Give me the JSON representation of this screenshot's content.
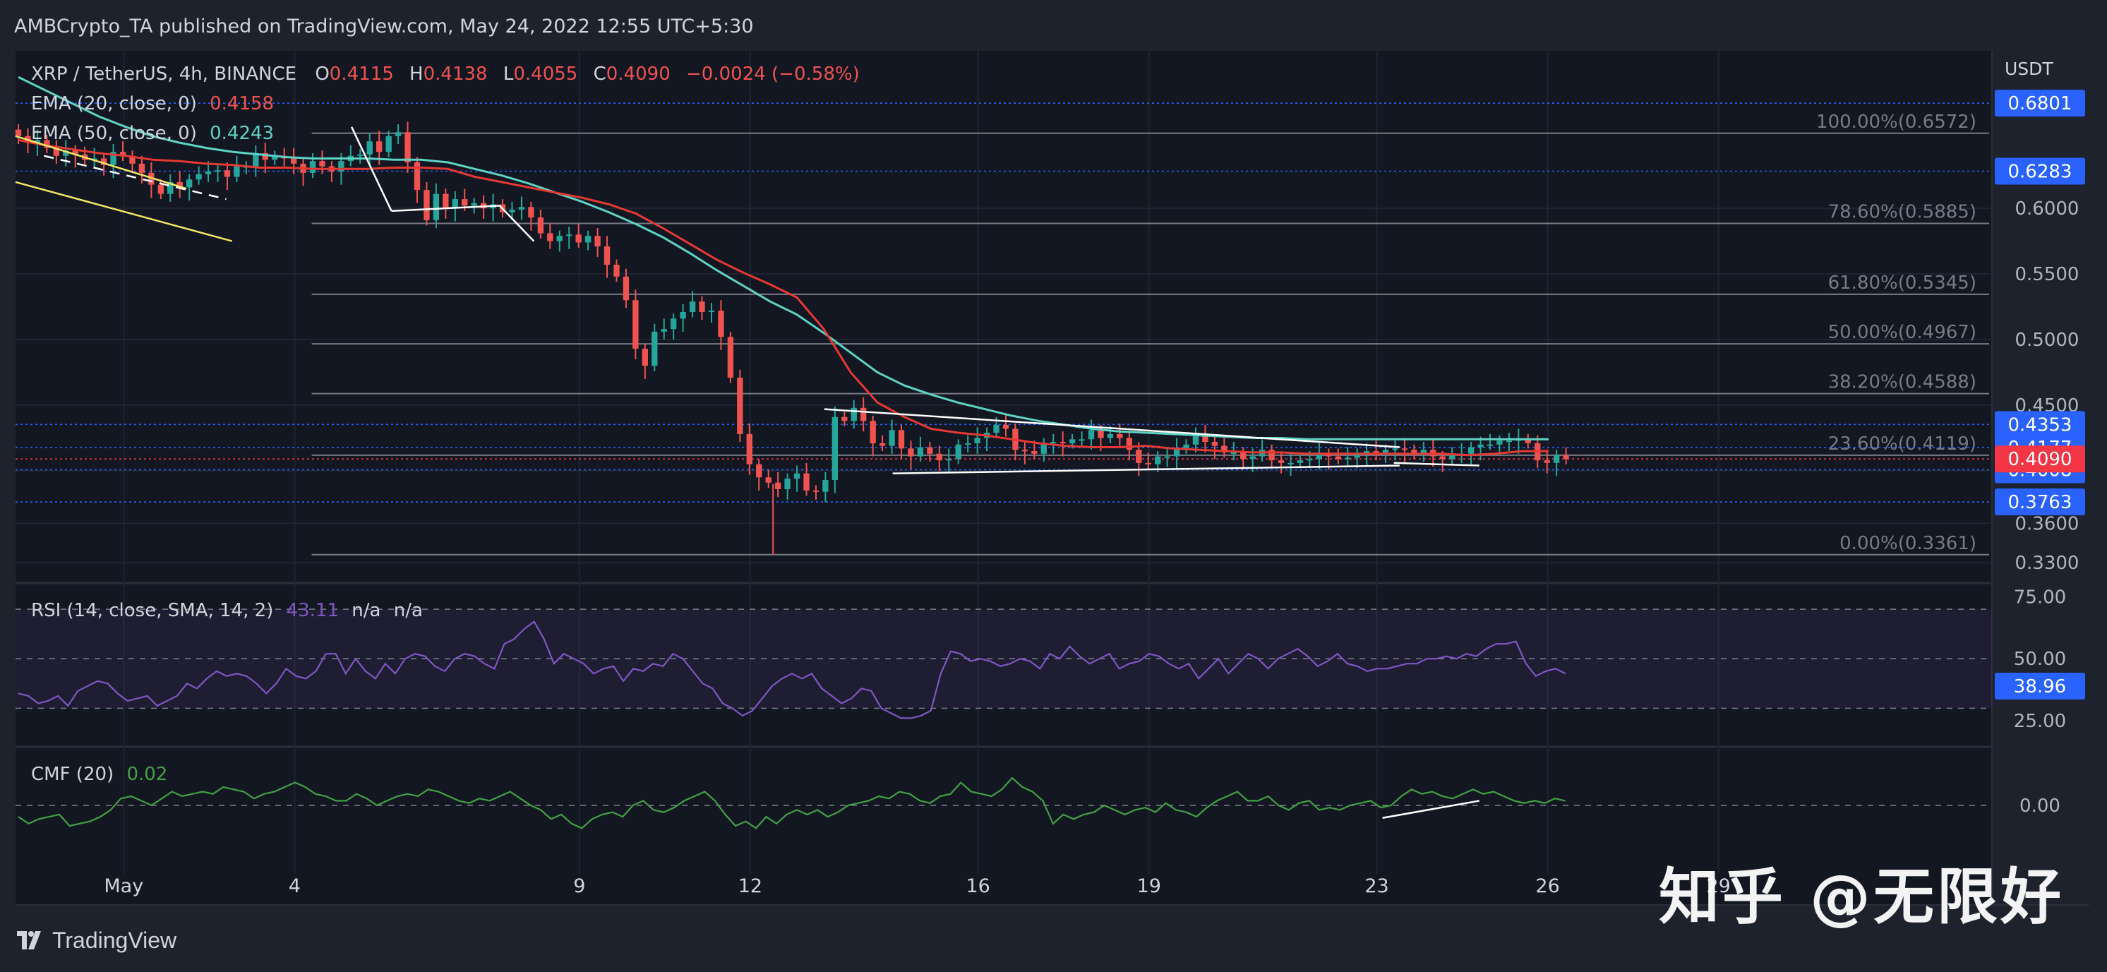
{
  "header": {
    "text": "AMBCrypto_TA published on TradingView.com, May 24, 2022 12:55 UTC+5:30"
  },
  "footer": {
    "logo_text": "TradingView"
  },
  "watermark": {
    "text": "知乎 @无限好"
  },
  "colors": {
    "bg": "#131722",
    "frame": "#1e222d",
    "up": "#26a69a",
    "down": "#ef5350",
    "ema20": "#e53935",
    "ema50": "#5fd3c3",
    "rsi": "#7e57c2",
    "cmf": "#43a047",
    "axis_badge": "#2962ff",
    "last_badge": "#f23645"
  },
  "chart_data": [
    {
      "type": "candlestick",
      "legend": {
        "symbol": "XRP / TetherUS, 4h, BINANCE",
        "o_label": "O",
        "o": "0.4115",
        "h_label": "H",
        "h": "0.4138",
        "l_label": "L",
        "l": "0.4055",
        "c_label": "C",
        "c": "0.4090",
        "change": "−0.0024 (−0.58%)",
        "ema20_label": "EMA (20, close, 0)",
        "ema20_value": "0.4158",
        "ema50_label": "EMA (50, close, 0)",
        "ema50_value": "0.4243"
      },
      "currency": "USDT",
      "ylim": [
        0.315,
        0.72
      ],
      "y_ticks": [
        0.33,
        0.36,
        0.4,
        0.45,
        0.5,
        0.55,
        0.6
      ],
      "y_tick_labels": [
        "0.3300",
        "0.3600",
        "0.4000",
        "0.4500",
        "0.5000",
        "0.5500",
        "0.6000"
      ],
      "price_badges": [
        {
          "value": 0.6801,
          "label": "0.6801"
        },
        {
          "value": 0.6283,
          "label": "0.6283"
        },
        {
          "value": 0.4353,
          "label": "0.4353"
        },
        {
          "value": 0.4177,
          "label": "0.4177"
        },
        {
          "value": 0.4008,
          "label": "0.4008"
        },
        {
          "value": 0.3763,
          "label": "0.3763"
        }
      ],
      "last_price": {
        "value": 0.409,
        "label": "0.4090"
      },
      "fibonacci": [
        {
          "label": "100.00%(0.6572)",
          "value": 0.6572
        },
        {
          "label": "78.60%(0.5885)",
          "value": 0.5885
        },
        {
          "label": "61.80%(0.5345)",
          "value": 0.5345
        },
        {
          "label": "50.00%(0.4967)",
          "value": 0.4967
        },
        {
          "label": "38.20%(0.4588)",
          "value": 0.4588
        },
        {
          "label": "23.60%(0.4119)",
          "value": 0.4119
        },
        {
          "label": "0.00%(0.3361)",
          "value": 0.3361
        }
      ],
      "x_ticks": [
        {
          "label": "May",
          "day": 1
        },
        {
          "label": "4",
          "day": 4
        },
        {
          "label": "9",
          "day": 9
        },
        {
          "label": "12",
          "day": 12
        },
        {
          "label": "16",
          "day": 16
        },
        {
          "label": "19",
          "day": 19
        },
        {
          "label": "23",
          "day": 23
        },
        {
          "label": "26",
          "day": 26
        },
        {
          "label": "29",
          "day": 29
        }
      ],
      "xlim_days": [
        -0.9,
        33.8
      ],
      "candle_step_days": 0.1667,
      "first_candle_day": -0.85,
      "candles_close": [
        0.655,
        0.65,
        0.652,
        0.646,
        0.64,
        0.644,
        0.641,
        0.637,
        0.638,
        0.633,
        0.643,
        0.64,
        0.634,
        0.627,
        0.618,
        0.611,
        0.62,
        0.616,
        0.622,
        0.626,
        0.628,
        0.629,
        0.624,
        0.632,
        0.632,
        0.642,
        0.637,
        0.64,
        0.638,
        0.634,
        0.627,
        0.636,
        0.632,
        0.628,
        0.636,
        0.64,
        0.641,
        0.651,
        0.643,
        0.655,
        0.658,
        0.635,
        0.614,
        0.591,
        0.611,
        0.6,
        0.607,
        0.602,
        0.604,
        0.6,
        0.603,
        0.597,
        0.599,
        0.601,
        0.593,
        0.581,
        0.575,
        0.579,
        0.58,
        0.574,
        0.579,
        0.571,
        0.557,
        0.548,
        0.53,
        0.493,
        0.48,
        0.506,
        0.508,
        0.516,
        0.521,
        0.529,
        0.521,
        0.522,
        0.502,
        0.471,
        0.428,
        0.405,
        0.395,
        0.391,
        0.386,
        0.394,
        0.398,
        0.385,
        0.384,
        0.393,
        0.441,
        0.438,
        0.448,
        0.438,
        0.421,
        0.419,
        0.431,
        0.417,
        0.411,
        0.418,
        0.413,
        0.408,
        0.409,
        0.42,
        0.421,
        0.425,
        0.429,
        0.435,
        0.432,
        0.416,
        0.415,
        0.413,
        0.421,
        0.422,
        0.421,
        0.424,
        0.424,
        0.431,
        0.425,
        0.428,
        0.425,
        0.416,
        0.406,
        0.405,
        0.411,
        0.411,
        0.417,
        0.42,
        0.427,
        0.422,
        0.419,
        0.414,
        0.414,
        0.409,
        0.411,
        0.416,
        0.408,
        0.406,
        0.406,
        0.408,
        0.409,
        0.413,
        0.411,
        0.409,
        0.41,
        0.413,
        0.415,
        0.412,
        0.416,
        0.417,
        0.416,
        0.413,
        0.416,
        0.411,
        0.409,
        0.412,
        0.413,
        0.418,
        0.42,
        0.42,
        0.423,
        0.423,
        0.424,
        0.421,
        0.408,
        0.406,
        0.412,
        0.409
      ],
      "candle_open_first": 0.66,
      "ema20": [
        0.652,
        0.648,
        0.645,
        0.642,
        0.64,
        0.637,
        0.636,
        0.634,
        0.633,
        0.631,
        0.631,
        0.63,
        0.63,
        0.63,
        0.631,
        0.631,
        0.63,
        0.624,
        0.62,
        0.616,
        0.612,
        0.608,
        0.603,
        0.596,
        0.585,
        0.573,
        0.561,
        0.551,
        0.542,
        0.532,
        0.508,
        0.475,
        0.452,
        0.441,
        0.432,
        0.429,
        0.427,
        0.424,
        0.421,
        0.419,
        0.418,
        0.418,
        0.419,
        0.417,
        0.416,
        0.415,
        0.414,
        0.414,
        0.413,
        0.413,
        0.413,
        0.413,
        0.413,
        0.413,
        0.412,
        0.413,
        0.415,
        0.415
      ],
      "ema50": [
        0.7,
        0.69,
        0.68,
        0.67,
        0.662,
        0.655,
        0.65,
        0.646,
        0.643,
        0.641,
        0.639,
        0.638,
        0.638,
        0.638,
        0.637,
        0.637,
        0.635,
        0.63,
        0.625,
        0.619,
        0.612,
        0.605,
        0.597,
        0.588,
        0.578,
        0.566,
        0.553,
        0.541,
        0.529,
        0.519,
        0.505,
        0.49,
        0.475,
        0.465,
        0.458,
        0.452,
        0.447,
        0.442,
        0.438,
        0.435,
        0.432,
        0.43,
        0.429,
        0.428,
        0.427,
        0.426,
        0.425,
        0.425,
        0.424,
        0.424,
        0.424,
        0.424,
        0.424,
        0.424,
        0.424,
        0.424,
        0.424,
        0.424
      ]
    },
    {
      "type": "line",
      "name_label": "RSI (14, close, SMA, 14, 2)",
      "value_label": "43.11",
      "extra1": "n/a",
      "extra2": "n/a",
      "ylim": [
        15,
        80
      ],
      "y_ticks": [
        25,
        50,
        75
      ],
      "y_tick_labels": [
        "25.00",
        "50.00",
        "75.00"
      ],
      "badge": {
        "value": 38.96,
        "label": "38.96"
      },
      "band": [
        30,
        70
      ],
      "values": [
        36,
        35,
        32,
        33,
        35,
        31,
        37,
        39,
        41,
        40,
        36,
        33,
        34,
        35,
        31,
        33,
        35,
        40,
        38,
        42,
        45,
        43,
        44,
        43,
        40,
        36,
        40,
        46,
        43,
        42,
        45,
        52,
        52,
        44,
        50,
        45,
        42,
        48,
        44,
        50,
        52,
        51,
        47,
        45,
        50,
        52,
        51,
        48,
        46,
        56,
        58,
        62,
        65,
        58,
        48,
        52,
        50,
        48,
        44,
        46,
        47,
        41,
        46,
        45,
        48,
        47,
        52,
        50,
        45,
        40,
        38,
        32,
        30,
        27,
        29,
        34,
        39,
        42,
        44,
        42,
        44,
        38,
        35,
        32,
        34,
        38,
        37,
        30,
        28,
        26,
        26,
        27,
        29,
        44,
        53,
        52,
        49,
        50,
        49,
        47,
        48,
        50,
        49,
        46,
        52,
        50,
        55,
        51,
        48,
        50,
        52,
        46,
        48,
        49,
        52,
        51,
        48,
        46,
        48,
        42,
        46,
        50,
        44,
        48,
        52,
        50,
        46,
        50,
        52,
        54,
        51,
        47,
        49,
        52,
        48,
        47,
        45,
        46,
        46,
        47,
        48,
        48,
        50,
        50,
        51,
        50,
        52,
        51,
        54,
        56,
        56,
        57,
        48,
        43,
        45,
        46,
        44
      ]
    },
    {
      "type": "line",
      "name_label": "CMF (20)",
      "value_label": "0.02",
      "ylim": [
        -0.3,
        0.25
      ],
      "y_ticks": [
        0
      ],
      "y_tick_labels": [
        "0.00"
      ],
      "values": [
        -0.05,
        -0.08,
        -0.06,
        -0.05,
        -0.04,
        -0.09,
        -0.08,
        -0.07,
        -0.05,
        -0.02,
        0.03,
        0.04,
        0.02,
        0.0,
        0.03,
        0.06,
        0.04,
        0.05,
        0.06,
        0.05,
        0.08,
        0.07,
        0.06,
        0.03,
        0.05,
        0.06,
        0.08,
        0.1,
        0.08,
        0.05,
        0.04,
        0.02,
        0.02,
        0.05,
        0.03,
        0.0,
        0.02,
        0.04,
        0.05,
        0.04,
        0.07,
        0.06,
        0.04,
        0.02,
        0.01,
        0.03,
        0.02,
        0.04,
        0.06,
        0.03,
        0.0,
        -0.02,
        -0.06,
        -0.04,
        -0.08,
        -0.1,
        -0.06,
        -0.04,
        -0.03,
        -0.05,
        0.0,
        0.02,
        -0.02,
        -0.03,
        -0.01,
        0.02,
        0.04,
        0.06,
        0.02,
        -0.04,
        -0.09,
        -0.07,
        -0.1,
        -0.05,
        -0.08,
        -0.04,
        -0.02,
        -0.04,
        -0.02,
        -0.05,
        -0.03,
        0.0,
        0.01,
        0.02,
        0.04,
        0.03,
        0.06,
        0.05,
        0.02,
        0.01,
        0.04,
        0.05,
        0.1,
        0.06,
        0.05,
        0.04,
        0.07,
        0.12,
        0.08,
        0.06,
        0.02,
        -0.08,
        -0.04,
        -0.06,
        -0.04,
        -0.03,
        0.0,
        -0.02,
        -0.04,
        -0.02,
        -0.01,
        -0.03,
        0.01,
        -0.02,
        -0.03,
        -0.05,
        -0.01,
        0.02,
        0.04,
        0.06,
        0.02,
        0.02,
        0.04,
        0.0,
        -0.02,
        0.01,
        0.02,
        -0.02,
        -0.01,
        -0.02,
        0.0,
        0.01,
        0.02,
        -0.01,
        0.0,
        0.04,
        0.07,
        0.05,
        0.06,
        0.04,
        0.03,
        0.05,
        0.07,
        0.05,
        0.06,
        0.04,
        0.02,
        0.01,
        0.02,
        0.01,
        0.03,
        0.02
      ]
    }
  ]
}
